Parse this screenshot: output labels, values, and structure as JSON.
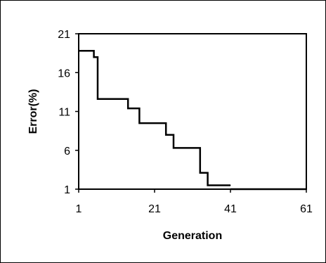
{
  "chart_data": {
    "type": "line",
    "title": "",
    "xlabel": "Generation",
    "ylabel": "Error(%)",
    "xlim": [
      1,
      61
    ],
    "ylim": [
      1,
      21
    ],
    "x_ticks": [
      1,
      21,
      41,
      61
    ],
    "y_ticks": [
      1,
      6,
      11,
      16,
      21
    ],
    "grid": false,
    "legend": "none",
    "line_color": "#000000",
    "series": [
      {
        "step": "post",
        "x": [
          1,
          4,
          5,
          6,
          13,
          14,
          16,
          17,
          23,
          24,
          25,
          26,
          32,
          33,
          34,
          35,
          41
        ],
        "values": [
          18.8,
          18.8,
          18.0,
          12.6,
          12.6,
          11.4,
          11.4,
          9.5,
          9.5,
          8.0,
          8.0,
          6.3,
          6.3,
          3.1,
          3.1,
          1.5,
          1.5
        ]
      },
      {
        "step": "none",
        "x": [
          41,
          61
        ],
        "values": [
          1,
          1
        ]
      }
    ]
  }
}
